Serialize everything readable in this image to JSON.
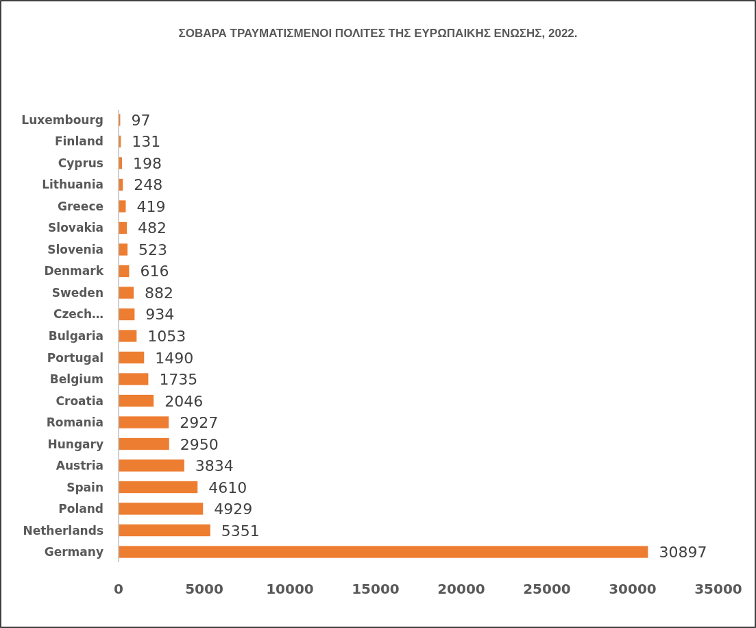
{
  "chart_data": {
    "type": "bar",
    "orientation": "horizontal",
    "title": "ΣΟΒΑΡΑ ΤΡΑΥΜΑΤΙΣΜΕΝΟΙ ΠΟΛΙΤΕΣ ΤΗΣ ΕΥΡΩΠΑΙΚΗΣ ΕΝΩΣΗΣ, 2022.",
    "categories": [
      "Luxembourg",
      "Finland",
      "Cyprus",
      "Lithuania",
      "Greece",
      "Slovakia",
      "Slovenia",
      "Denmark",
      "Sweden",
      "Czech…",
      "Bulgaria",
      "Portugal",
      "Belgium",
      "Croatia",
      "Romania",
      "Hungary",
      "Austria",
      "Spain",
      "Poland",
      "Netherlands",
      "Germany"
    ],
    "values": [
      97,
      131,
      198,
      248,
      419,
      482,
      523,
      616,
      882,
      934,
      1053,
      1490,
      1735,
      2046,
      2927,
      2950,
      3834,
      4610,
      4929,
      5351,
      30897
    ],
    "color": "#ed7d31",
    "xlim": [
      0,
      35000
    ],
    "xticks": [
      0,
      5000,
      10000,
      15000,
      20000,
      25000,
      30000,
      35000
    ],
    "data_labels": true
  }
}
